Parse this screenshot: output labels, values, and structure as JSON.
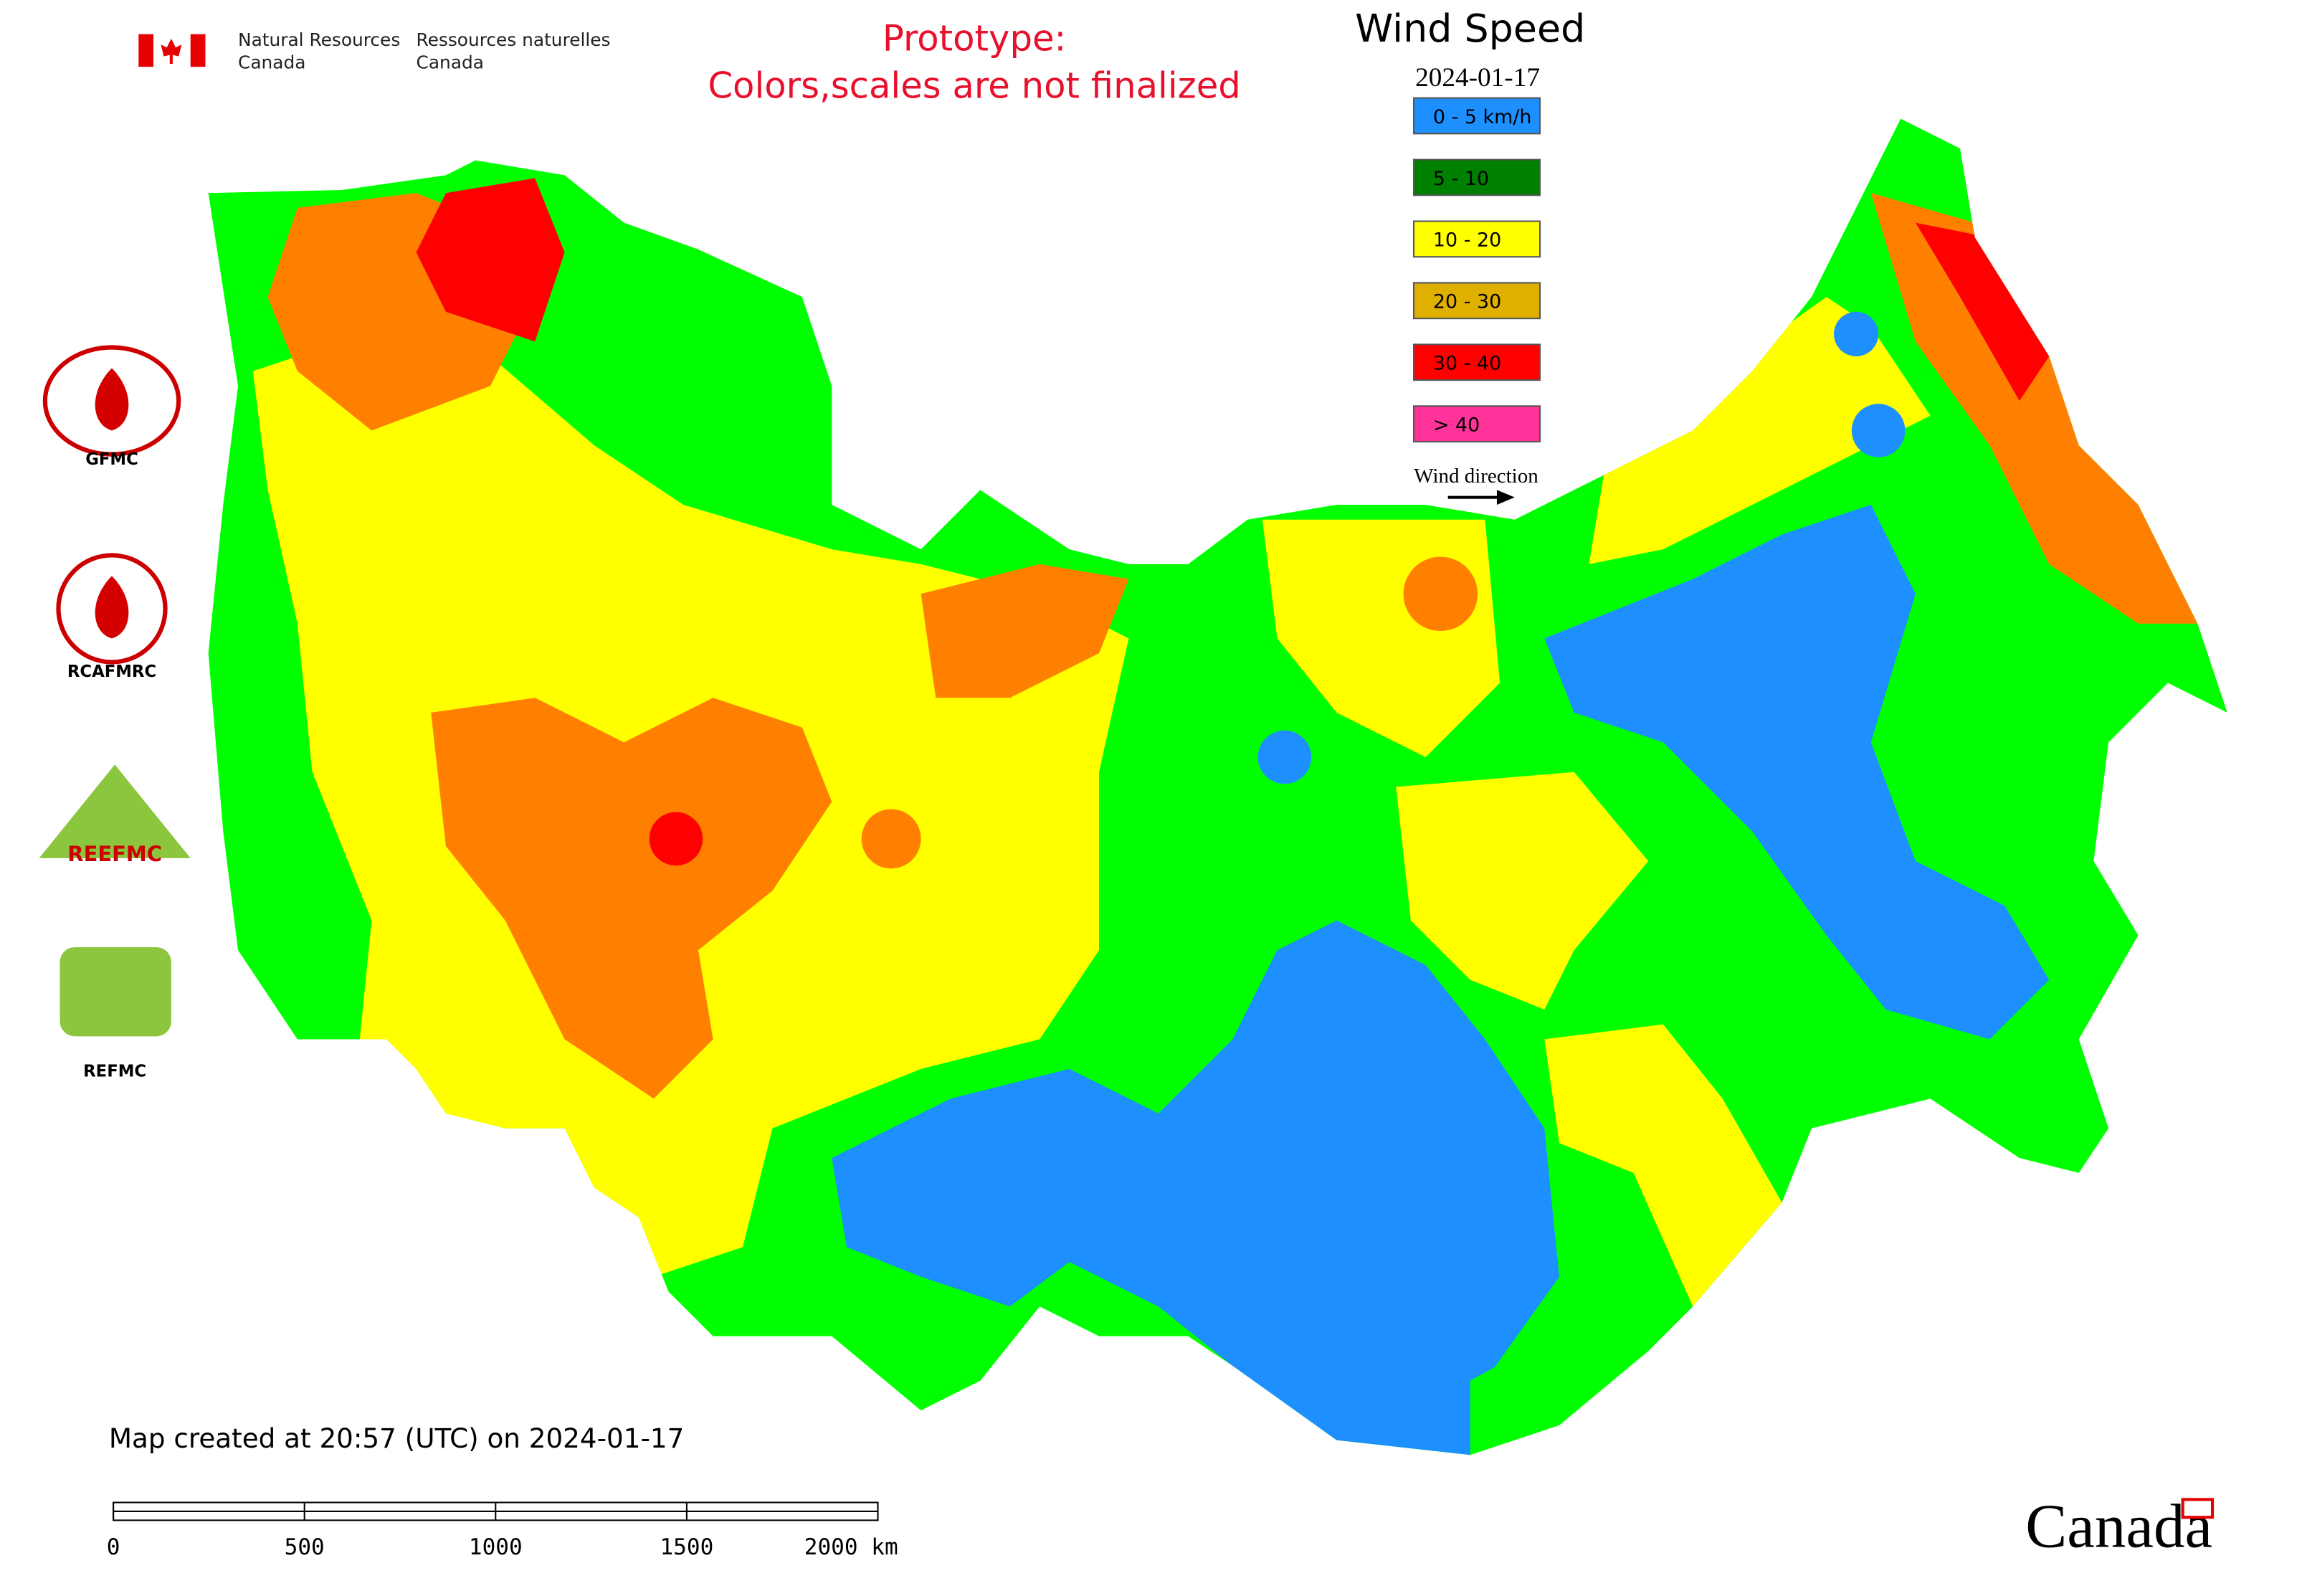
{
  "header": {
    "org_en_line1": "Natural Resources",
    "org_en_line2": "Canada",
    "org_fr_line1": "Ressources naturelles",
    "org_fr_line2": "Canada"
  },
  "notice": {
    "line1": "Prototype:",
    "line2": "Colors,scales are not finalized"
  },
  "legend": {
    "title": "Wind Speed",
    "date": "2024-01-17",
    "items": [
      {
        "label": "0 - 5 km/h",
        "color": "#1e8fff"
      },
      {
        "label": "5 - 10",
        "color": "#008000"
      },
      {
        "label": "10 - 20",
        "color": "#ffff00"
      },
      {
        "label": "20 - 30",
        "color": "#e0b000"
      },
      {
        "label": "30 - 40",
        "color": "#ff0000"
      },
      {
        "label": "> 40",
        "color": "#ff3399"
      }
    ],
    "direction_label": "Wind direction"
  },
  "logos": [
    {
      "label": "GFMC"
    },
    {
      "label": "RCAFMRC"
    },
    {
      "label": "REEFMC"
    },
    {
      "label": "REFMC"
    }
  ],
  "footer": {
    "created": "Map created at 20:57 (UTC) on 2024-01-17",
    "scale_labels": [
      "0",
      "500",
      "1000",
      "1500",
      "2000 km"
    ],
    "wordmark": "Canada"
  }
}
